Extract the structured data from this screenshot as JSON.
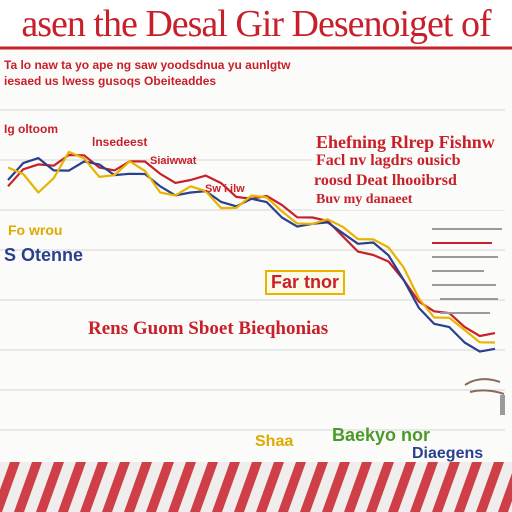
{
  "chart_data": {
    "type": "line",
    "title": "asen the Desal Gir Desenoiget of",
    "subtitle_lines": [
      "Ta lo naw ta yo ape ng saw yoodsdnua yu aunlgtw",
      "iesaed us lwess gusoqs Obeiteaddes"
    ],
    "series": [
      {
        "color": "#c8202a",
        "values": [
          62,
          69,
          72,
          68,
          70,
          66,
          64,
          63,
          58,
          56,
          52,
          46,
          40,
          32,
          22,
          17,
          15
        ]
      },
      {
        "color": "#2a3f8f",
        "values": [
          64,
          71,
          67,
          69,
          66,
          62,
          60,
          57,
          58,
          52,
          50,
          47,
          44,
          32,
          18,
          12,
          10
        ]
      },
      {
        "color": "#e8b400",
        "values": [
          68,
          60,
          73,
          65,
          70,
          60,
          62,
          55,
          59,
          54,
          50,
          49,
          45,
          36,
          20,
          16,
          12
        ]
      }
    ],
    "annotations": {
      "top_left": "Ig oltoom",
      "top_center": "lnsedeest",
      "mid_center": "Siaiwwat",
      "mid_right_small": "Sw i ilw",
      "left_yellow": "Fo wrou",
      "left_blue": "S Otenne",
      "center_yellow_box": "Far tnor",
      "wide_red": "Rens Guom Sboet Bieqhonias",
      "bottom_yellow": "Shaa",
      "bottom_green": "Baekyo nor",
      "bottom_blue": "Diaegens"
    },
    "callout": {
      "lines": [
        "Ehefning Rlrep Fishnw",
        "Facl nv lagdrs ousicb",
        "roosd Deat lhooibrsd",
        "Buv my danaeet"
      ]
    }
  }
}
